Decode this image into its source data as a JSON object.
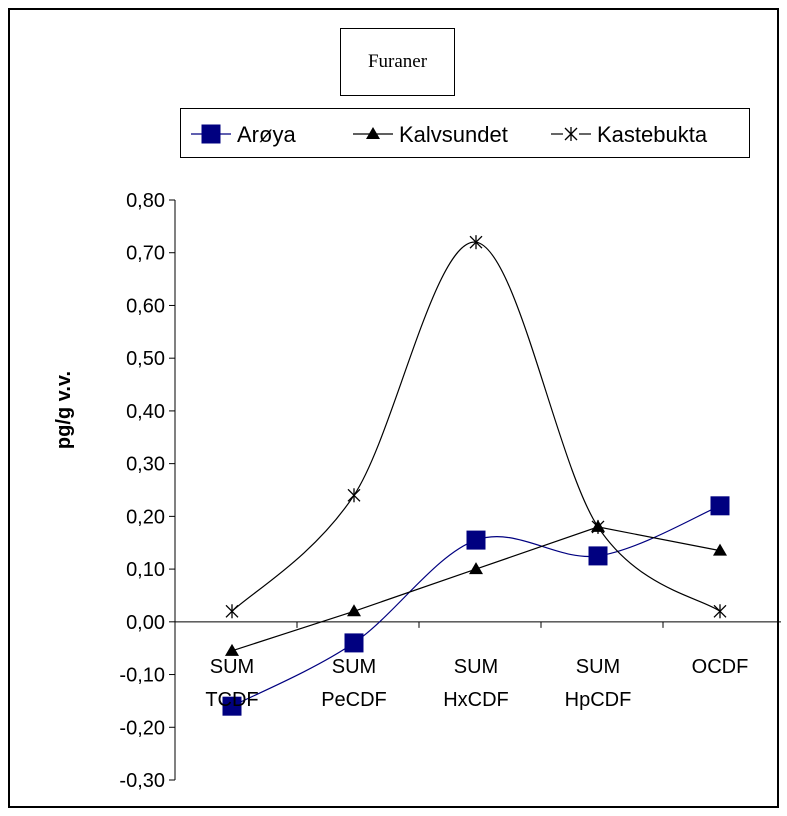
{
  "chart_data": {
    "type": "line",
    "title": "Furaner",
    "ylabel": "pg/g v.v.",
    "xlabel": "",
    "categories": [
      [
        "SUM",
        "TCDF"
      ],
      [
        "SUM",
        "PeCDF"
      ],
      [
        "SUM",
        "HxCDF"
      ],
      [
        "SUM",
        "HpCDF"
      ],
      [
        "OCDF"
      ]
    ],
    "ylim": [
      -0.3,
      0.8
    ],
    "yticks": [
      "0,80",
      "0,70",
      "0,60",
      "0,50",
      "0,40",
      "0,30",
      "0,20",
      "0,10",
      "0,00",
      "-0,10",
      "-0,20",
      "-0,30"
    ],
    "ytick_values": [
      0.8,
      0.7,
      0.6,
      0.5,
      0.4,
      0.3,
      0.2,
      0.1,
      0.0,
      -0.1,
      -0.2,
      -0.3
    ],
    "legend_position": "top",
    "grid": false,
    "series": [
      {
        "name": "Arøya",
        "values": [
          -0.16,
          -0.04,
          0.155,
          0.125,
          0.22
        ],
        "color": "#000080",
        "marker": "square",
        "smooth": true
      },
      {
        "name": "Kalvsundet",
        "values": [
          -0.055,
          0.02,
          0.1,
          0.18,
          0.135
        ],
        "color": "#000000",
        "marker": "triangle",
        "smooth": false
      },
      {
        "name": "Kastebukta",
        "values": [
          0.02,
          0.24,
          0.72,
          0.18,
          0.02
        ],
        "color": "#000000",
        "marker": "star",
        "smooth": true
      }
    ]
  }
}
